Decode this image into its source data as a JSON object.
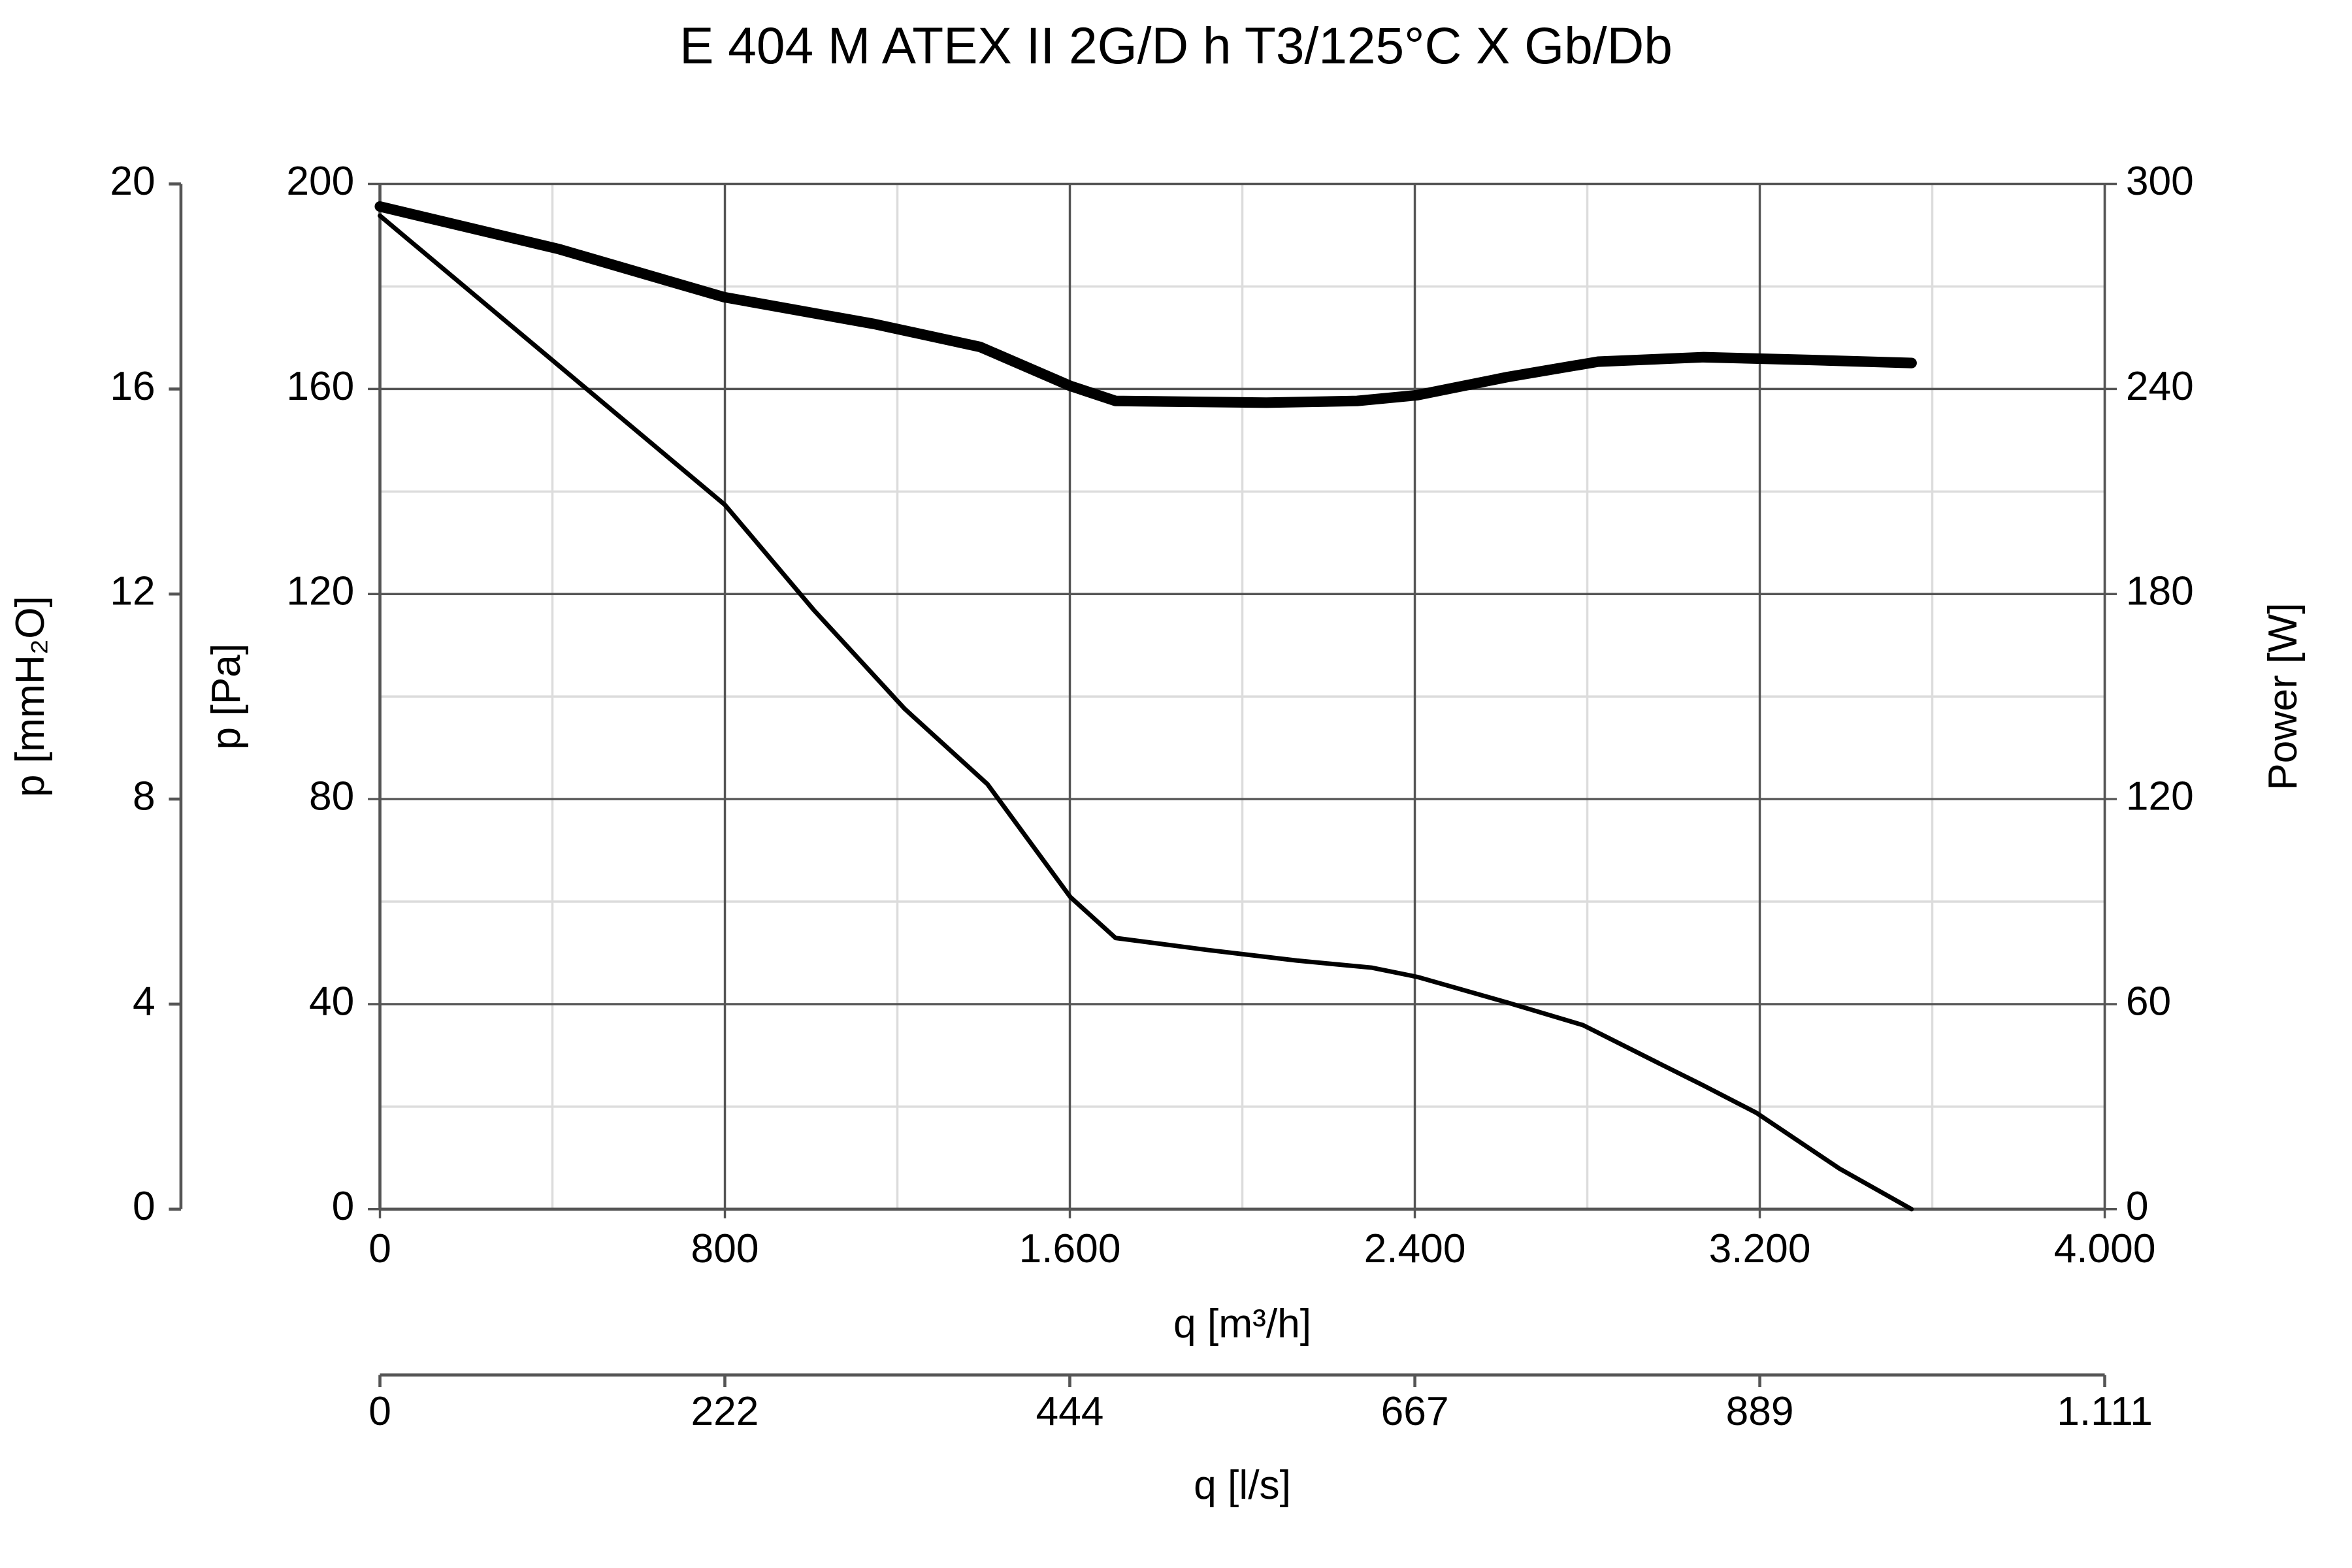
{
  "chart_data": {
    "type": "line",
    "title": "E 404 M ATEX II 2G/D h T3/125°C X Gb/Db",
    "xlabel": "q [m³/h]",
    "ylabel": "p [Pa]",
    "y2label": "Power [W]",
    "xlim": [
      0,
      4000
    ],
    "xticks": [
      0,
      800,
      {
        "value": 1600,
        "label": "1.600"
      },
      {
        "value": 2400,
        "label": "2.400"
      },
      {
        "value": 3200,
        "label": "3.200"
      },
      {
        "value": 4000,
        "label": "4.000"
      }
    ],
    "x_minor_ticks": [
      400,
      1200,
      2000,
      2800,
      3600
    ],
    "ylim": [
      0,
      200
    ],
    "yticks": [
      0,
      40,
      80,
      120,
      160,
      200
    ],
    "y_minor_ticks": [
      20,
      60,
      100,
      140,
      180
    ],
    "y2lim": [
      0,
      300
    ],
    "y2ticks": [
      0,
      60,
      120,
      180,
      240,
      300
    ],
    "grid": true,
    "extra_axes": [
      {
        "label": "p [mmH₂O]",
        "ylim": [
          0,
          20
        ],
        "yticks": [
          0,
          4,
          8,
          12,
          16,
          20
        ]
      },
      {
        "label": "q [l/s]",
        "xlim": [
          0,
          1111.1
        ],
        "xticks": [
          0,
          {
            "value": 222.2,
            "label": "222"
          },
          {
            "value": 444.4,
            "label": "444"
          },
          {
            "value": 666.7,
            "label": "667"
          },
          {
            "value": 888.9,
            "label": "889"
          },
          {
            "value": 1111.1,
            "label": "1.111"
          }
        ]
      }
    ],
    "series": [
      {
        "color": "#000000",
        "width": 3,
        "x": [
          0,
          400,
          800,
          1007,
          1217,
          1409,
          1601,
          1706,
          1916,
          2126,
          2301,
          2406,
          2615,
          2790,
          2965,
          3070,
          3192,
          3385,
          3552
        ],
        "values": [
          193.8,
          165.6,
          137.4,
          116.8,
          97.6,
          82.9,
          60.9,
          52.9,
          50.6,
          48.5,
          47.1,
          45.3,
          40.3,
          35.9,
          28.5,
          24.1,
          18.8,
          7.9,
          0
        ]
      },
      {
        "color": "#000000",
        "width": 7,
        "axis": "y2",
        "x": [
          0,
          413,
          797,
          1147,
          1392,
          1601,
          1706,
          2056,
          2266,
          2406,
          2615,
          2825,
          3070,
          3315,
          3552
        ],
        "values": [
          293.4,
          281,
          266.9,
          259,
          252.3,
          240.9,
          236.5,
          236,
          236.5,
          238.2,
          243.5,
          248,
          249.3,
          248.5,
          247.6
        ]
      }
    ]
  }
}
